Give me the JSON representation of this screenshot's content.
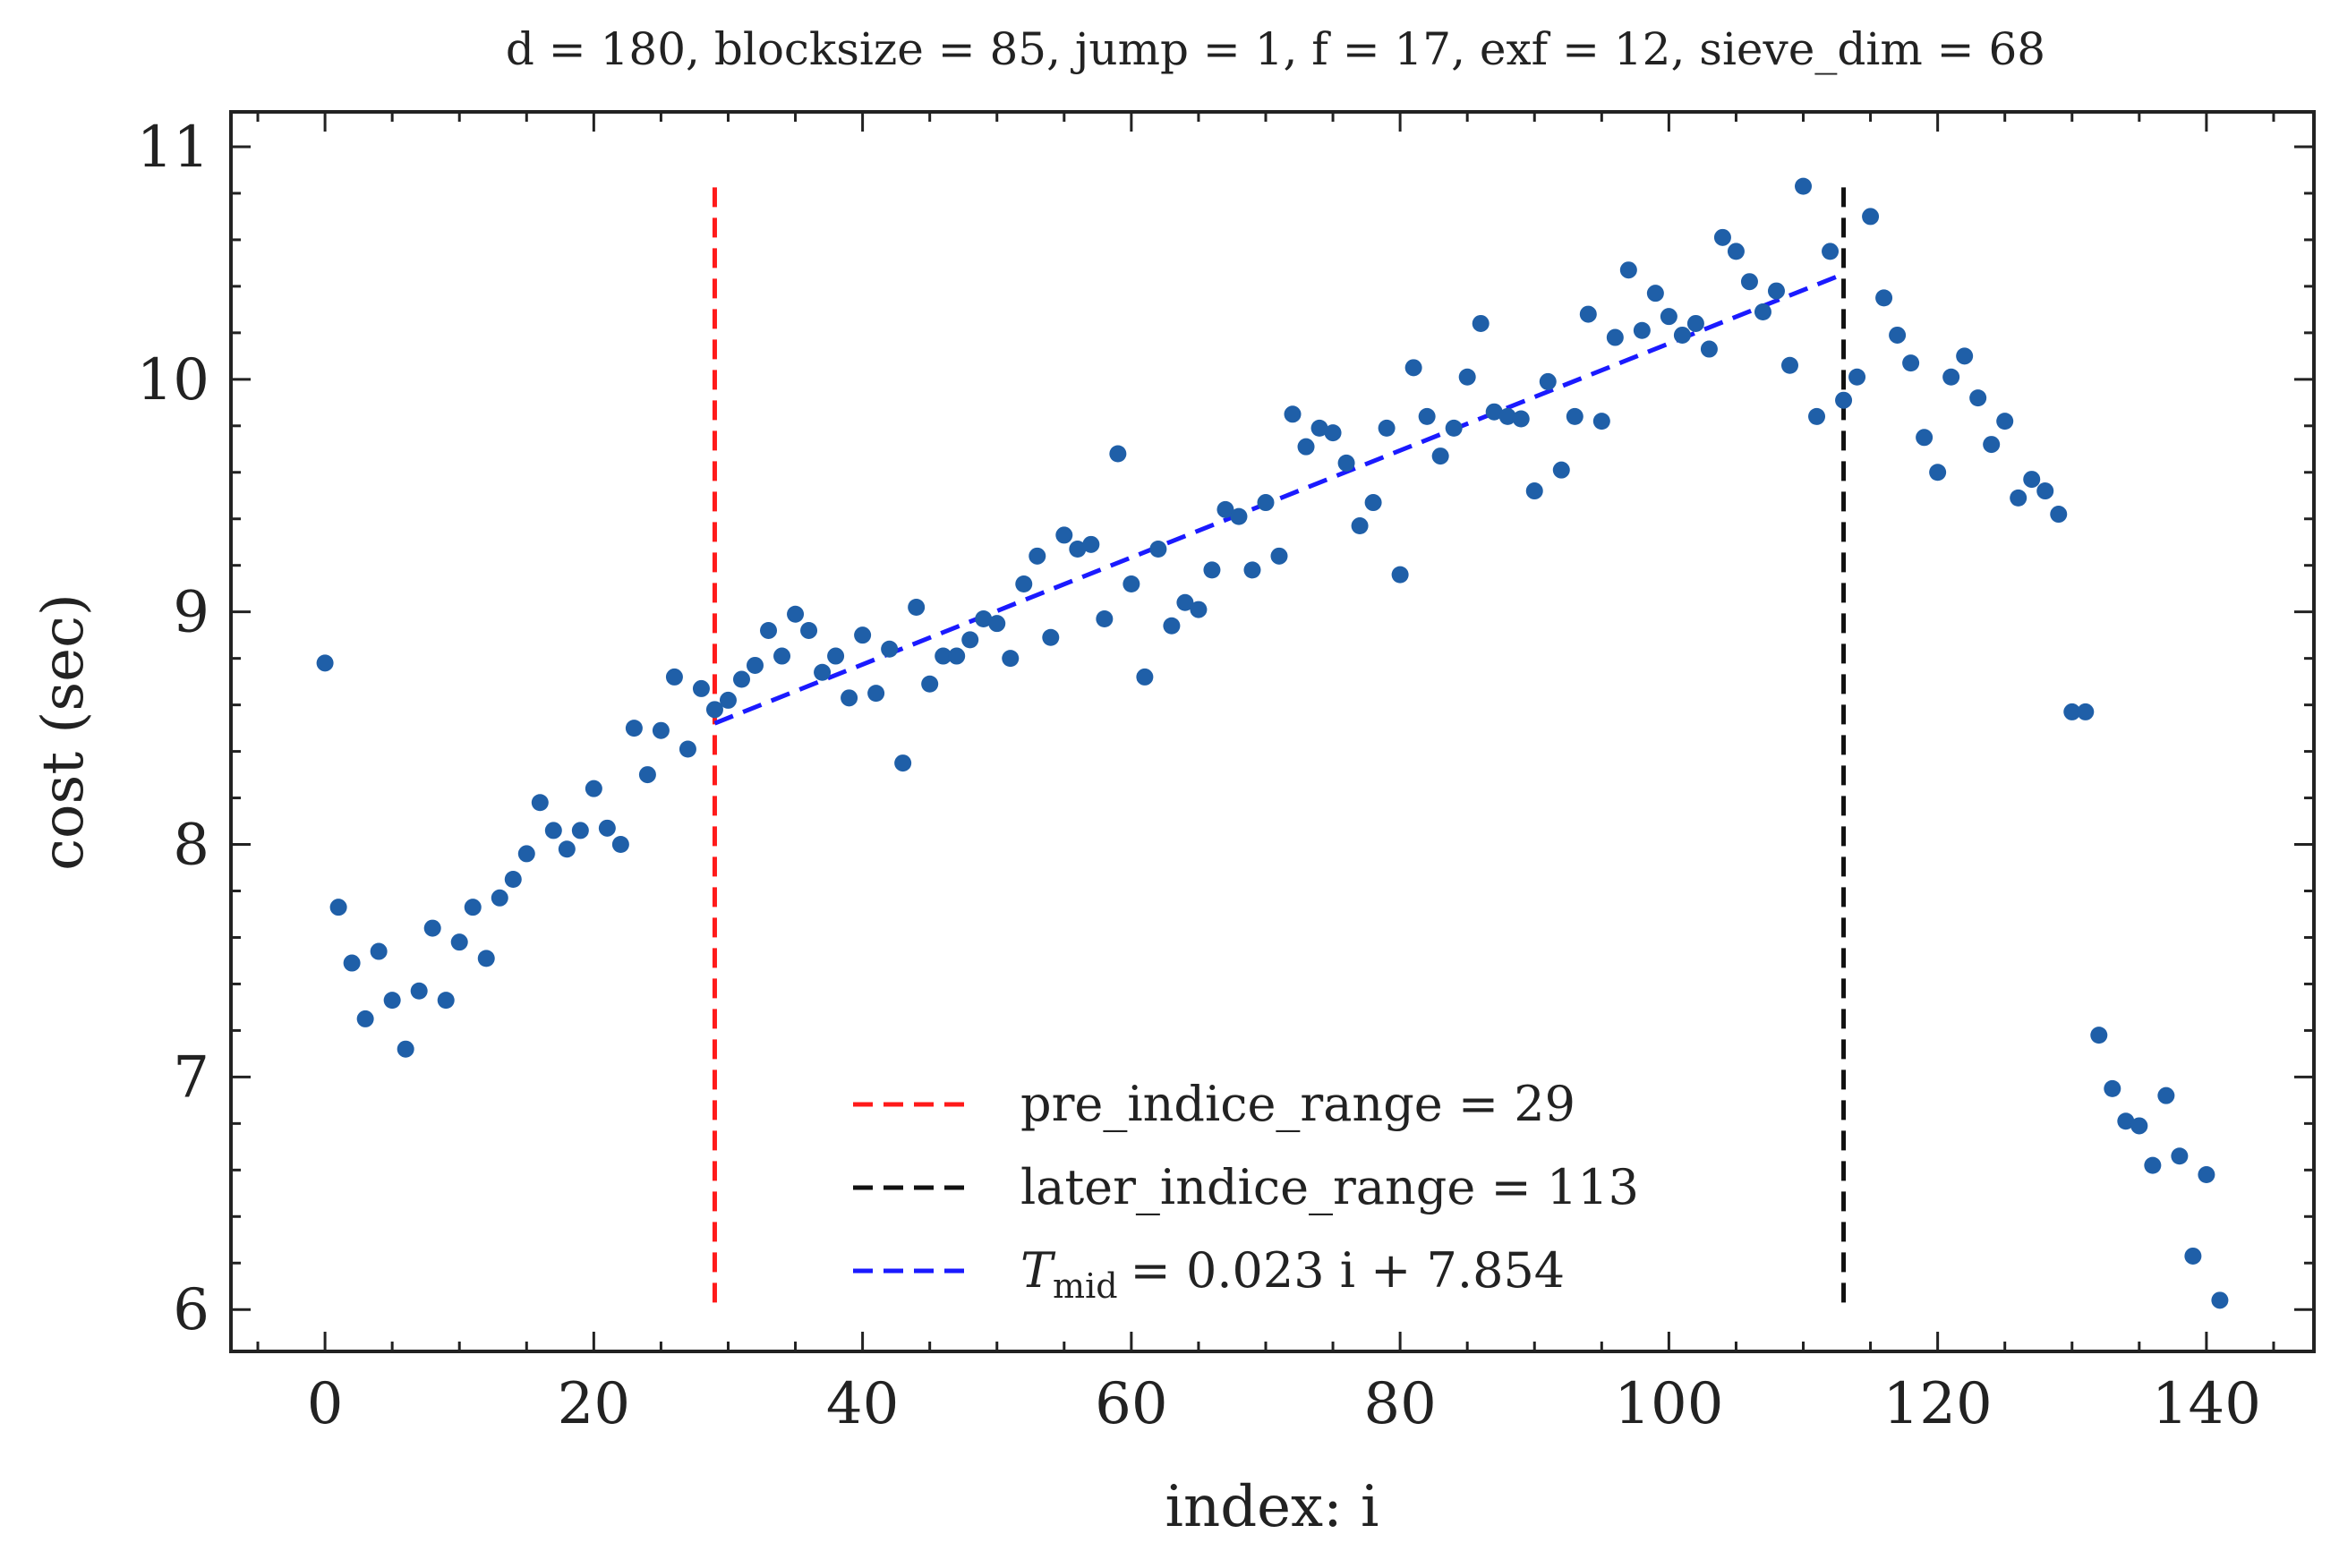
{
  "chart_data": {
    "type": "scatter",
    "title": "d = 180, blocksize = 85, jump = 1, f = 17, exf = 12, sieve_dim = 68",
    "xlabel": "index: i",
    "ylabel": "cost (sec)",
    "xlim": [
      -7,
      148
    ],
    "ylim": [
      5.82,
      11.15
    ],
    "xticks": [
      0,
      20,
      40,
      60,
      80,
      100,
      120,
      140
    ],
    "yticks": [
      6,
      7,
      8,
      9,
      10,
      11
    ],
    "grid": false,
    "legend_position": "lower-center",
    "colors": {
      "points": "#1f5fa8",
      "pre_line": "#ff1a1a",
      "later_line": "#111111",
      "fit_line": "#1a1aff",
      "axis": "#222222"
    },
    "points": {
      "x": [
        0,
        1,
        2,
        3,
        4,
        5,
        6,
        7,
        8,
        9,
        10,
        11,
        12,
        13,
        14,
        15,
        16,
        17,
        18,
        19,
        20,
        21,
        22,
        23,
        24,
        25,
        26,
        27,
        28,
        29,
        30,
        31,
        32,
        33,
        34,
        35,
        36,
        37,
        38,
        39,
        40,
        41,
        42,
        43,
        44,
        45,
        46,
        47,
        48,
        49,
        50,
        51,
        52,
        53,
        54,
        55,
        56,
        57,
        58,
        59,
        60,
        61,
        62,
        63,
        64,
        65,
        66,
        67,
        68,
        69,
        70,
        71,
        72,
        73,
        74,
        75,
        76,
        77,
        78,
        79,
        80,
        81,
        82,
        83,
        84,
        85,
        86,
        87,
        88,
        89,
        90,
        91,
        92,
        93,
        94,
        95,
        96,
        97,
        98,
        99,
        100,
        101,
        102,
        103,
        104,
        105,
        106,
        107,
        108,
        109,
        110,
        111,
        112,
        113,
        114,
        115,
        116,
        117,
        118,
        119,
        120,
        121,
        122,
        123,
        124,
        125,
        126,
        127,
        128,
        129,
        130,
        131,
        132,
        133,
        134,
        135,
        136,
        137,
        138,
        139,
        140,
        141
      ],
      "y": [
        8.78,
        7.73,
        7.49,
        7.25,
        7.54,
        7.33,
        7.12,
        7.37,
        7.64,
        7.33,
        7.58,
        7.73,
        7.51,
        7.77,
        7.85,
        7.96,
        8.18,
        8.06,
        7.98,
        8.06,
        8.24,
        8.07,
        8.0,
        8.5,
        8.3,
        8.49,
        8.72,
        8.41,
        8.67,
        8.58,
        8.62,
        8.71,
        8.77,
        8.92,
        8.81,
        8.99,
        8.92,
        8.74,
        8.81,
        8.63,
        8.9,
        8.65,
        8.84,
        8.35,
        9.02,
        8.69,
        8.81,
        8.81,
        8.88,
        8.97,
        8.95,
        8.8,
        9.12,
        9.24,
        8.89,
        9.33,
        9.27,
        9.29,
        8.97,
        9.68,
        9.12,
        8.72,
        9.27,
        8.94,
        9.04,
        9.01,
        9.18,
        9.44,
        9.41,
        9.18,
        9.47,
        9.24,
        9.85,
        9.71,
        9.79,
        9.77,
        9.64,
        9.37,
        9.47,
        9.79,
        9.16,
        10.05,
        9.84,
        9.67,
        9.79,
        10.01,
        10.24,
        9.86,
        9.84,
        9.83,
        9.52,
        9.99,
        9.61,
        9.84,
        10.28,
        9.82,
        10.18,
        10.47,
        10.21,
        10.37,
        10.27,
        10.19,
        10.24,
        10.13,
        10.61,
        10.55,
        10.42,
        10.29,
        10.38,
        10.06,
        10.83,
        9.84,
        10.55,
        9.91,
        10.01,
        10.7,
        10.35,
        10.19,
        10.07,
        9.75,
        9.6,
        10.01,
        10.1,
        9.92,
        9.72,
        9.82,
        9.49,
        9.57,
        9.52,
        9.42,
        8.57,
        8.57,
        7.18,
        6.95,
        6.81,
        6.79,
        6.62,
        6.92,
        6.66,
        6.23,
        6.58,
        6.04
      ]
    },
    "pre_line": {
      "x": 29,
      "y_range": [
        6.03,
        10.83
      ],
      "label": "pre_indice_range = 29"
    },
    "later_line": {
      "x": 113,
      "y_range": [
        6.03,
        10.83
      ],
      "label": "later_indice_range = 113"
    },
    "fit_line": {
      "slope": 0.023,
      "intercept": 7.854,
      "x_range": [
        29,
        113
      ],
      "label_symbol": "T",
      "label_subscript": "mid",
      "label_rest": "= 0.023 i + 7.854"
    }
  }
}
